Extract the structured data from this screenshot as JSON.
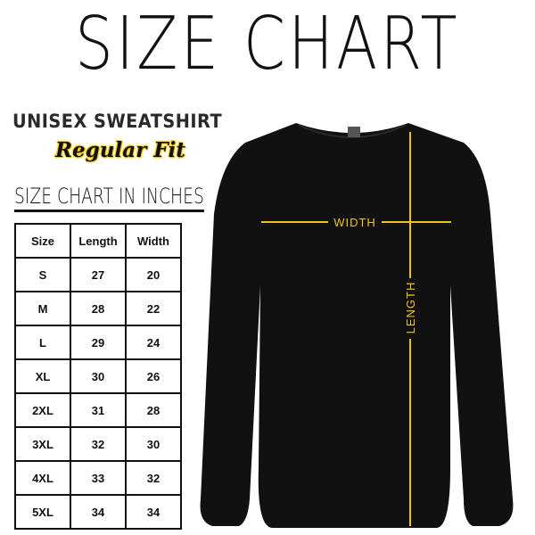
{
  "title": "SIZE CHART",
  "product": "UNISEX SWEATSHIRT",
  "fit": "Regular Fit",
  "table_title": "SIZE CHART IN INCHES",
  "table": {
    "headers": [
      "Size",
      "Length",
      "Width"
    ],
    "rows": [
      [
        "S",
        "27",
        "20"
      ],
      [
        "M",
        "28",
        "22"
      ],
      [
        "L",
        "29",
        "24"
      ],
      [
        "XL",
        "30",
        "26"
      ],
      [
        "2XL",
        "31",
        "28"
      ],
      [
        "3XL",
        "32",
        "30"
      ],
      [
        "4XL",
        "33",
        "32"
      ],
      [
        "5XL",
        "34",
        "34"
      ]
    ]
  },
  "diagram": {
    "width_label": "WIDTH",
    "length_label": "LENGTH",
    "line_color": "#f2c31b",
    "garment_color": "#111111"
  }
}
